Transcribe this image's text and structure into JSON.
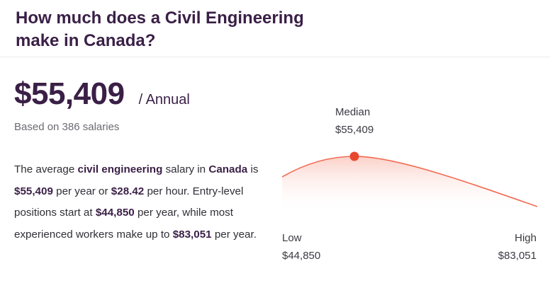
{
  "header": {
    "title": "How much does a Civil Engineering make in Canada?"
  },
  "salary": {
    "amount": "$55,409",
    "period": "/ Annual",
    "based_on": "Based on 386 salaries"
  },
  "description": {
    "t1": "The average ",
    "b1": "civil engineering",
    "t2": " salary in ",
    "b2": "Canada",
    "t3": " is ",
    "b3": "$55,409",
    "t4": " per year or ",
    "b4": "$28.42",
    "t5": " per hour. Entry-level positions start at ",
    "b5": "$44,850",
    "t6": " per year, while most experienced workers make up to ",
    "b6": "$83,051",
    "t7": " per year."
  },
  "distribution": {
    "median_label": "Median",
    "median_value": "$55,409",
    "low_label": "Low",
    "low_value": "$44,850",
    "high_label": "High",
    "high_value": "$83,051",
    "curve_color": "#f26b52",
    "dot_color": "#e8472f"
  }
}
